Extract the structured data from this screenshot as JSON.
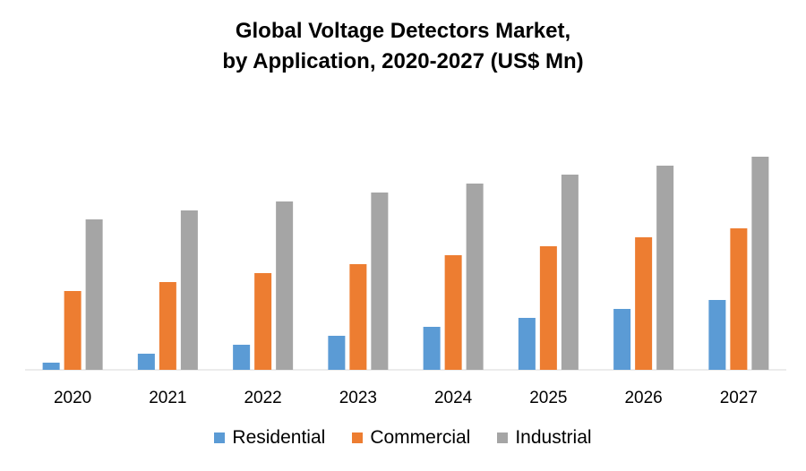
{
  "chart_data": {
    "type": "bar",
    "title_line1": "Global Voltage Detectors Market,",
    "title_line2": "by Application, 2020-2027 (US$ Mn)",
    "categories": [
      "2020",
      "2021",
      "2022",
      "2023",
      "2024",
      "2025",
      "2026",
      "2027"
    ],
    "series": [
      {
        "name": "Residential",
        "color": "#5B9BD5",
        "values": [
          8,
          18,
          28,
          38,
          48,
          58,
          68,
          78
        ]
      },
      {
        "name": "Commercial",
        "color": "#ED7D31",
        "values": [
          88,
          98,
          108,
          118,
          128,
          138,
          148,
          158
        ]
      },
      {
        "name": "Industrial",
        "color": "#A5A5A5",
        "values": [
          168,
          178,
          188,
          198,
          208,
          218,
          228,
          238
        ]
      }
    ],
    "xlabel": "",
    "ylabel": "",
    "ylim": [
      0,
      260
    ],
    "grid": false,
    "legend_position": "bottom"
  }
}
